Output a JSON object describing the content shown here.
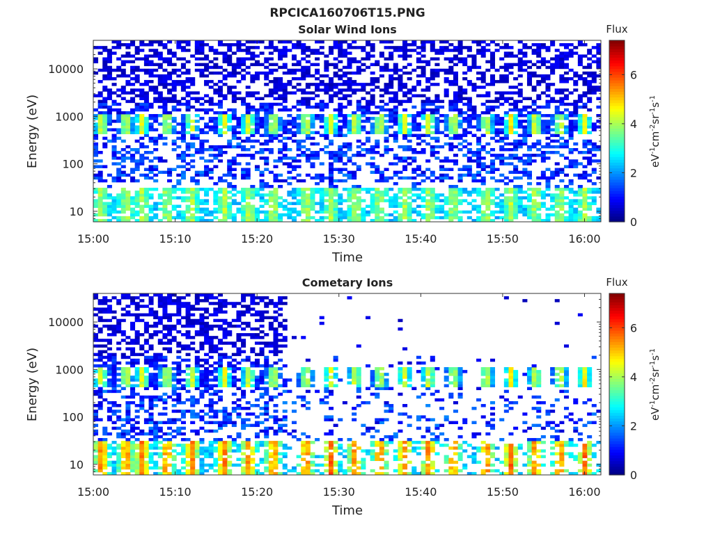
{
  "figure": {
    "title": "RPCICA160706T15.PNG"
  },
  "colorbar": {
    "label_top": "Flux",
    "ticks": [
      0,
      2,
      4,
      6
    ],
    "range": [
      0,
      7.4
    ],
    "colormap": "jet",
    "units_base": [
      "eV",
      "cm",
      "sr",
      "s"
    ],
    "units_exp": [
      "-1",
      "-2",
      "-1",
      "-1"
    ]
  },
  "chart_data": [
    {
      "type": "heatmap",
      "title": "Solar Wind Ions",
      "xlabel": "Time",
      "ylabel": "Energy (eV)",
      "x_tick_labels": [
        "15:00",
        "15:10",
        "15:20",
        "15:30",
        "15:40",
        "15:50",
        "16:00"
      ],
      "x_tick_minutes": [
        0,
        10,
        20,
        30,
        40,
        50,
        60
      ],
      "xlim_minutes": [
        0,
        62
      ],
      "y_scale": "log",
      "y_tick_labels": [
        "10",
        "100",
        "1000",
        "10000"
      ],
      "y_tick_values": [
        10,
        100,
        1000,
        10000
      ],
      "ylim": [
        6,
        40000
      ],
      "colorbar_label": "Flux",
      "colorbar_range": [
        0,
        7.4
      ],
      "periodic_peak_minutes": [
        1,
        4,
        6,
        9,
        12,
        16,
        19,
        22,
        26,
        29,
        32,
        35,
        38,
        41,
        44,
        48,
        51,
        54,
        57,
        60
      ],
      "bands": [
        {
          "name": "high-energy background",
          "energy_range_eV": [
            2000,
            40000
          ],
          "flux": 0.7
        },
        {
          "name": "periodic enhancement",
          "energy_range_eV": [
            400,
            1100
          ],
          "peak_flux": 4.5
        },
        {
          "name": "mid-energy background",
          "energy_range_eV": [
            40,
            400
          ],
          "flux": 1.3
        },
        {
          "name": "low-energy enhancement",
          "energy_range_eV": [
            6,
            30
          ],
          "peak_flux": 4.3
        }
      ]
    },
    {
      "type": "heatmap",
      "title": "Cometary Ions",
      "xlabel": "Time",
      "ylabel": "Energy (eV)",
      "x_tick_labels": [
        "15:00",
        "15:10",
        "15:20",
        "15:30",
        "15:40",
        "15:50",
        "16:00"
      ],
      "x_tick_minutes": [
        0,
        10,
        20,
        30,
        40,
        50,
        60
      ],
      "xlim_minutes": [
        0,
        62
      ],
      "y_scale": "log",
      "y_tick_labels": [
        "10",
        "100",
        "1000",
        "10000"
      ],
      "y_tick_values": [
        10,
        100,
        1000,
        10000
      ],
      "ylim": [
        6,
        40000
      ],
      "colorbar_label": "Flux",
      "colorbar_range": [
        0,
        7.4
      ],
      "dense_coverage_until_minute": 23.5,
      "periodic_peak_minutes": [
        1,
        4,
        6,
        9,
        12,
        16,
        19,
        22,
        26,
        29,
        32,
        35,
        38,
        41,
        44,
        48,
        51,
        54,
        57,
        60
      ],
      "bands": [
        {
          "name": "high-energy background (dense interval only)",
          "energy_range_eV": [
            2000,
            40000
          ],
          "flux": 0.7
        },
        {
          "name": "periodic enhancement",
          "energy_range_eV": [
            400,
            1100
          ],
          "peak_flux": 4.5
        },
        {
          "name": "mid-energy background",
          "energy_range_eV": [
            40,
            400
          ],
          "flux": 1.3
        },
        {
          "name": "low-energy enhancement",
          "energy_range_eV": [
            6,
            30
          ],
          "peak_flux": 6.0
        }
      ]
    }
  ]
}
